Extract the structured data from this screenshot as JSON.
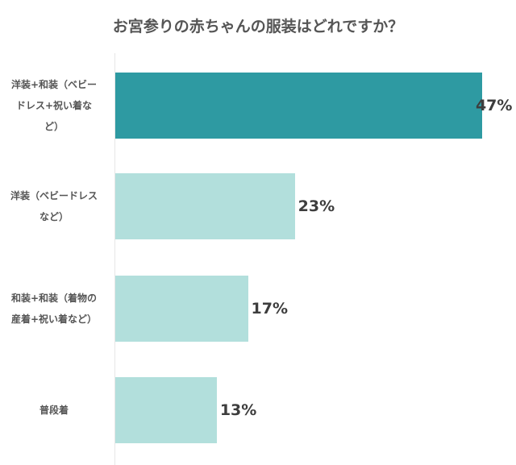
{
  "chart_data": {
    "type": "bar",
    "orientation": "horizontal",
    "title": "お宮参りの赤ちゃんの服装はどれですか？",
    "categories": [
      "洋装+和装（ベビードレス+祝い着など）",
      "洋装（ベビードレスなど）",
      "和装+和装（着物の産着+祝い着など）",
      "普段着"
    ],
    "values": [
      47,
      23,
      17,
      13
    ],
    "value_labels": [
      "47%",
      "23%",
      "17%",
      "13%"
    ],
    "unit": "%",
    "xlabel": "",
    "ylabel": "",
    "xlim": [
      0,
      50
    ],
    "grid": false,
    "legend": null,
    "colors": [
      "#2e9aa2",
      "#b2dfdc",
      "#b2dfdc",
      "#b2dfdc"
    ]
  },
  "title": "お宮参りの赤ちゃんの服装はどれですか？",
  "rows": [
    {
      "label_lines": [
        "洋装+和装（ベビー",
        "ドレス+祝い着な",
        "ど）"
      ],
      "value": "47%",
      "percent": 47,
      "color": "#2e9aa2"
    },
    {
      "label_lines": [
        "洋装（ベビードレス",
        "など）"
      ],
      "value": "23%",
      "percent": 23,
      "color": "#b2dfdc"
    },
    {
      "label_lines": [
        "和装+和装（着物の",
        "産着+祝い着など）"
      ],
      "value": "17%",
      "percent": 17,
      "color": "#b2dfdc"
    },
    {
      "label_lines": [
        "普段着"
      ],
      "value": "13%",
      "percent": 13,
      "color": "#b2dfdc"
    }
  ]
}
